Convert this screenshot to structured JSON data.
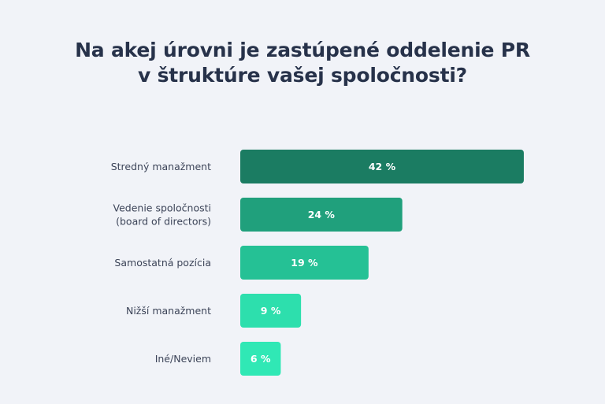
{
  "title": {
    "line1": "Na akej úrovni je zastúpené oddelenie PR",
    "line2": "v štruktúre vašej spoločnosti?"
  },
  "chart_data": {
    "type": "bar",
    "orientation": "horizontal",
    "categories": [
      [
        "Stredný manažment"
      ],
      [
        "Vedenie spoločnosti",
        "(board of directors)"
      ],
      [
        "Samostatná pozícia"
      ],
      [
        "Nižší manažment"
      ],
      [
        "Iné/Neviem"
      ]
    ],
    "values": [
      42,
      24,
      19,
      9,
      6
    ],
    "value_labels": [
      "42 %",
      "24 %",
      "19 %",
      "9 %",
      "6 %"
    ],
    "colors": [
      "#1b7c62",
      "#20a07c",
      "#25c195",
      "#2ddfad",
      "#30e8b5"
    ],
    "unit": "%",
    "grid": false,
    "legend": "none"
  }
}
